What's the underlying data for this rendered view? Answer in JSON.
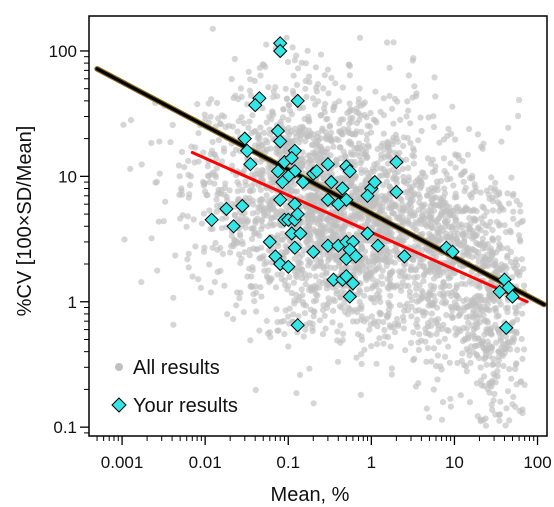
{
  "chart_data": {
    "type": "scatter",
    "title": "",
    "xlabel": "Mean, %",
    "ylabel": "%CV [100×SD/Mean]",
    "x_scale": "log",
    "y_scale": "log",
    "xlim": [
      0.0004,
      130
    ],
    "ylim": [
      0.085,
      190
    ],
    "x_ticks": [
      0.001,
      0.01,
      0.1,
      1,
      10,
      100
    ],
    "x_tick_labels": [
      "0.001",
      "0.01",
      "0.1",
      "1",
      "10",
      "100"
    ],
    "y_ticks": [
      0.1,
      1,
      10,
      100
    ],
    "y_tick_labels": [
      "0.1",
      "1",
      "10",
      "100"
    ],
    "grid": false,
    "legend_position": "bottom-left",
    "colors": {
      "all_results": "#c0c0c0",
      "your_results_fill": "#33e6e6",
      "your_results_edge": "#000000",
      "black_fit": "#000000",
      "black_fit_under": "#8b6914",
      "red_fit": "#ff0000"
    },
    "series": [
      {
        "name": "All results",
        "kind": "scatter",
        "marker": "circle",
        "cloud": {
          "approx_points": 3200,
          "density_centers": [
            {
              "x": 0.15,
              "y": 8,
              "spread_x": 1.25,
              "spread_y": 0.95
            },
            {
              "x": 1.0,
              "y": 3,
              "spread_x": 1.2,
              "spread_y": 0.95
            },
            {
              "x": 30,
              "y": 1.0,
              "spread_x": 0.45,
              "spread_y": 1.1
            },
            {
              "x": 8,
              "y": 2,
              "spread_x": 0.6,
              "spread_y": 1.0
            }
          ]
        }
      },
      {
        "name": "Your results",
        "kind": "scatter",
        "marker": "diamond",
        "points": [
          [
            0.08,
            115
          ],
          [
            0.08,
            100
          ],
          [
            0.045,
            42
          ],
          [
            0.04,
            37
          ],
          [
            0.13,
            40
          ],
          [
            0.03,
            20
          ],
          [
            0.075,
            23
          ],
          [
            0.08,
            19
          ],
          [
            0.032,
            16
          ],
          [
            0.12,
            16
          ],
          [
            0.035,
            12.5
          ],
          [
            0.09,
            13
          ],
          [
            0.11,
            14
          ],
          [
            0.12,
            11
          ],
          [
            0.075,
            11
          ],
          [
            0.1,
            10
          ],
          [
            0.085,
            9
          ],
          [
            0.15,
            9
          ],
          [
            0.2,
            10.5
          ],
          [
            0.22,
            11
          ],
          [
            0.3,
            12.5
          ],
          [
            0.33,
            9
          ],
          [
            0.5,
            12
          ],
          [
            0.55,
            11
          ],
          [
            0.45,
            8
          ],
          [
            1.0,
            8
          ],
          [
            1.1,
            9
          ],
          [
            0.9,
            7
          ],
          [
            2.0,
            13
          ],
          [
            2.0,
            7.5
          ],
          [
            0.5,
            6.5
          ],
          [
            0.3,
            6.5
          ],
          [
            0.4,
            6
          ],
          [
            0.08,
            6.5
          ],
          [
            0.12,
            6
          ],
          [
            0.018,
            5.5
          ],
          [
            0.028,
            5.8
          ],
          [
            0.012,
            4.5
          ],
          [
            0.022,
            4
          ],
          [
            0.06,
            3
          ],
          [
            0.09,
            4.5
          ],
          [
            0.1,
            4.5
          ],
          [
            0.12,
            4.5
          ],
          [
            0.13,
            5
          ],
          [
            0.11,
            3.5
          ],
          [
            0.14,
            3.5
          ],
          [
            0.12,
            2.7
          ],
          [
            0.07,
            2.3
          ],
          [
            0.2,
            2.5
          ],
          [
            0.3,
            2.8
          ],
          [
            0.4,
            2.8
          ],
          [
            0.5,
            3
          ],
          [
            0.6,
            3
          ],
          [
            0.5,
            2.2
          ],
          [
            0.55,
            2.6
          ],
          [
            0.9,
            3.5
          ],
          [
            1.2,
            2.8
          ],
          [
            0.65,
            2.3
          ],
          [
            2.5,
            2.3
          ],
          [
            0.08,
            2
          ],
          [
            0.1,
            1.9
          ],
          [
            0.35,
            1.5
          ],
          [
            0.45,
            1.5
          ],
          [
            0.5,
            1.6
          ],
          [
            0.55,
            1.1
          ],
          [
            0.6,
            1.4
          ],
          [
            0.13,
            0.65
          ],
          [
            8.0,
            2.7
          ],
          [
            9.5,
            2.5
          ],
          [
            40,
            1.5
          ],
          [
            45,
            1.3
          ],
          [
            50,
            1.1
          ],
          [
            42,
            0.62
          ],
          [
            35,
            1.2
          ]
        ]
      },
      {
        "name": "",
        "kind": "line",
        "color": "#000000",
        "x": [
          0.0005,
          120
        ],
        "y": [
          72,
          0.95
        ]
      },
      {
        "name": "",
        "kind": "line",
        "color": "#ff0000",
        "x": [
          0.007,
          75
        ],
        "y": [
          15.5,
          1.0
        ]
      }
    ]
  }
}
